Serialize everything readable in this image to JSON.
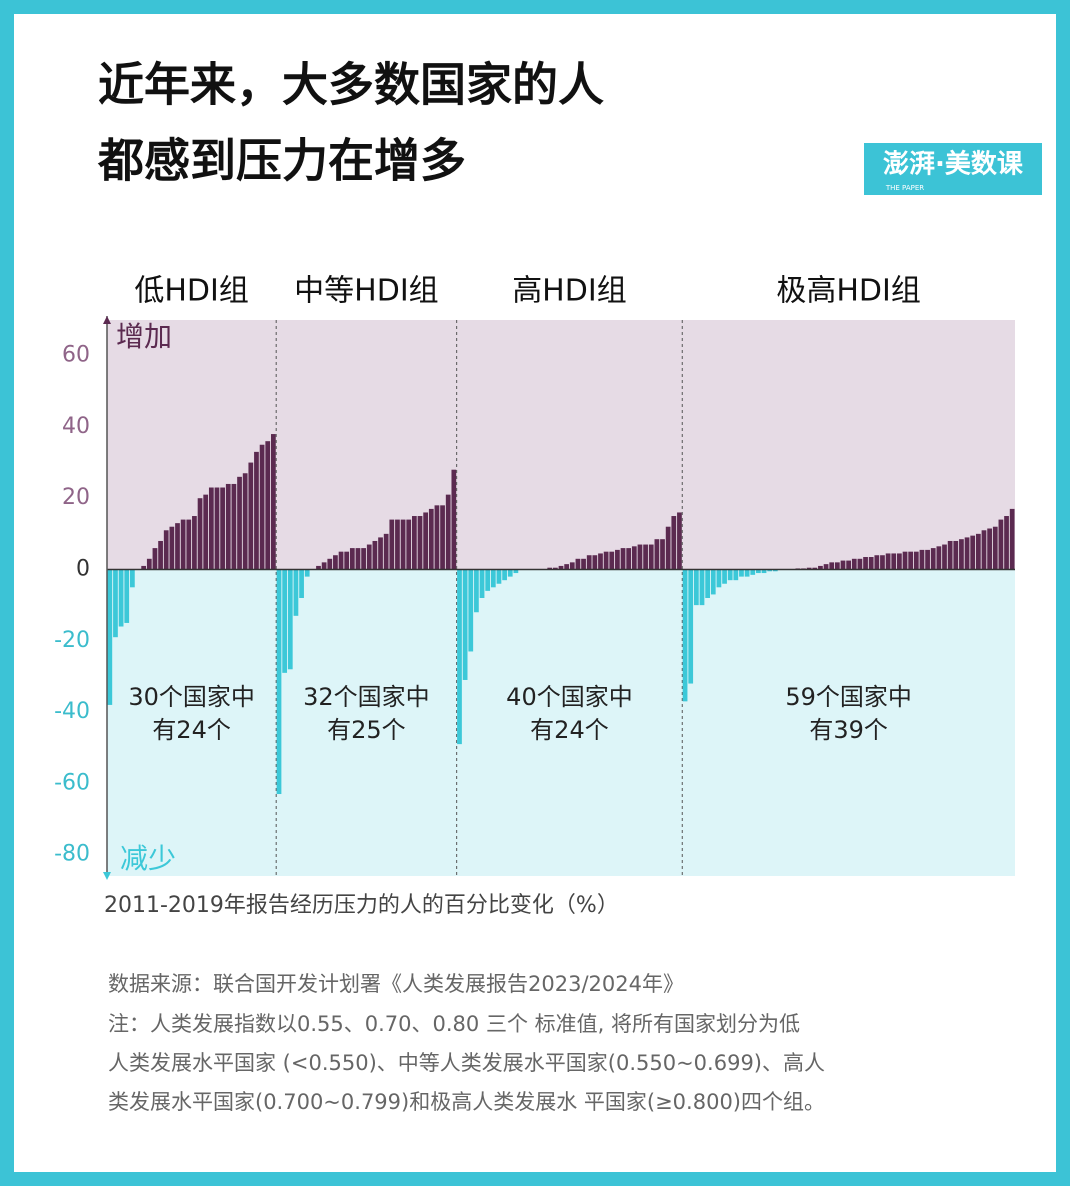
{
  "title_lines": [
    "近年来，大多数国家的人",
    "都感到压力在增多"
  ],
  "logo": {
    "name": "澎湃·美数课",
    "sub": "THE PAPER"
  },
  "chart_data": {
    "type": "bar",
    "up_label": "增加",
    "down_label": "减少",
    "x_label": "2011-2019年报告经历压力的人的百分比变化（%）",
    "ylim": [
      -86,
      70
    ],
    "yticks": [
      -80,
      -60,
      -40,
      -20,
      0,
      20,
      40,
      60
    ],
    "positive_color": "#5b2a50",
    "negative_color": "#3cc8d8",
    "groups": [
      {
        "name": "低HDI组",
        "note": [
          "30个国家中",
          "有24个"
        ],
        "values": [
          -38,
          -19,
          -16,
          -15,
          -5,
          0,
          1,
          3,
          6,
          8,
          11,
          12,
          13,
          14,
          14,
          15,
          20,
          21,
          23,
          23,
          23,
          24,
          24,
          26,
          27,
          30,
          33,
          35,
          36,
          38
        ]
      },
      {
        "name": "中等HDI组",
        "note": [
          "32个国家中",
          "有25个"
        ],
        "values": [
          -63,
          -29,
          -28,
          -13,
          -8,
          -2,
          0,
          1,
          2,
          3,
          4,
          5,
          5,
          6,
          6,
          6,
          7,
          8,
          9,
          10,
          14,
          14,
          14,
          14,
          15,
          15,
          16,
          17,
          18,
          18,
          21,
          28
        ]
      },
      {
        "name": "高HDI组",
        "note": [
          "40个国家中",
          "有24个"
        ],
        "values": [
          -49,
          -31,
          -23,
          -12,
          -8,
          -6,
          -5,
          -4,
          -3,
          -2,
          -1,
          0,
          0,
          0,
          0,
          0,
          0.5,
          0.5,
          1,
          1.5,
          2,
          3,
          3,
          4,
          4,
          4.5,
          5,
          5,
          5.5,
          6,
          6,
          6.5,
          7,
          7,
          7,
          8.5,
          8.5,
          12,
          15,
          16
        ]
      },
      {
        "name": "极高HDI组",
        "note": [
          "59个国家中",
          "有39个"
        ],
        "values": [
          -37,
          -32,
          -10,
          -10,
          -8,
          -7,
          -5,
          -4,
          -3,
          -3,
          -2,
          -2,
          -1.5,
          -1,
          -1,
          -0.5,
          -0.5,
          0,
          0,
          0,
          0.3,
          0.3,
          0.5,
          0.5,
          1,
          1.5,
          2,
          2,
          2.5,
          2.5,
          3,
          3,
          3.5,
          3.5,
          4,
          4,
          4.5,
          4.5,
          4.5,
          5,
          5,
          5,
          5.5,
          5.5,
          6,
          6.5,
          7,
          8,
          8,
          8.5,
          9,
          9.5,
          10,
          11,
          11.5,
          12,
          14,
          15,
          17
        ]
      }
    ]
  },
  "source": "数据来源：联合国开发计划署《人类发展报告2023/2024年》",
  "notes": [
    "注：人类发展指数以0.55、0.70、0.80 三个 标准值, 将所有国家划分为低",
    "人类发展水平国家 (<0.550)、中等人类发展水平国家(0.550~0.699)、高人",
    "类发展水平国家(0.700~0.799)和极高人类发展水 平国家(≥0.800)四个组。"
  ]
}
